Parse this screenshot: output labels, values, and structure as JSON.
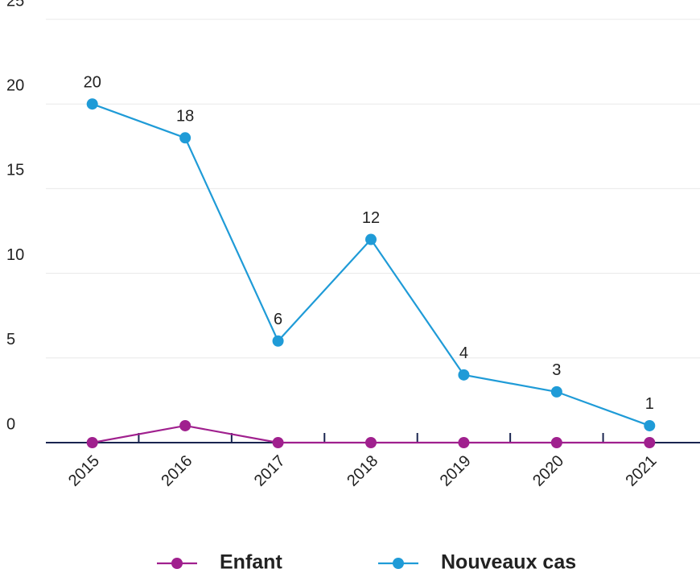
{
  "chart_data": {
    "type": "line",
    "categories": [
      "2015",
      "2016",
      "2017",
      "2018",
      "2019",
      "2020",
      "2021"
    ],
    "series": [
      {
        "name": "Enfant",
        "color": "#a0208e",
        "values": [
          0,
          1,
          0,
          0,
          0,
          0,
          0
        ],
        "data_labels": false
      },
      {
        "name": "Nouveaux cas",
        "color": "#1f9bd7",
        "values": [
          20,
          18,
          6,
          12,
          4,
          3,
          1
        ],
        "data_labels": true
      }
    ],
    "ylim": [
      0,
      25
    ],
    "yticks": [
      0,
      5,
      10,
      15,
      20,
      25
    ],
    "grid": true,
    "legend": "bottom"
  }
}
